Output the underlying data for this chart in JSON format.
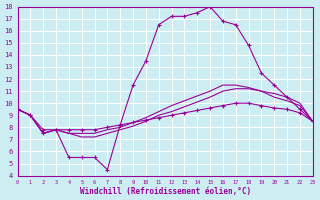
{
  "xlabel": "Windchill (Refroidissement éolien,°C)",
  "background_color": "#cceef2",
  "grid_color": "#ffffff",
  "line_color": "#990099",
  "xlim": [
    0,
    23
  ],
  "ylim": [
    4,
    18
  ],
  "xticks": [
    0,
    1,
    2,
    3,
    4,
    5,
    6,
    7,
    8,
    9,
    10,
    11,
    12,
    13,
    14,
    15,
    16,
    17,
    18,
    19,
    20,
    21,
    22,
    23
  ],
  "yticks": [
    4,
    5,
    6,
    7,
    8,
    9,
    10,
    11,
    12,
    13,
    14,
    15,
    16,
    17,
    18
  ],
  "series": [
    {
      "x": [
        0,
        1,
        2,
        3,
        4,
        5,
        6,
        7,
        8,
        9,
        10,
        11,
        12,
        13,
        14,
        15,
        16,
        17,
        18,
        19,
        20,
        21,
        22,
        23
      ],
      "y": [
        9.5,
        9.0,
        7.5,
        7.8,
        5.5,
        5.5,
        5.5,
        4.5,
        8.2,
        11.5,
        13.5,
        16.5,
        17.2,
        17.2,
        17.5,
        18.0,
        16.8,
        16.5,
        14.8,
        12.5,
        11.5,
        10.5,
        9.5,
        8.5
      ],
      "marker": "+"
    },
    {
      "x": [
        0,
        1,
        2,
        3,
        4,
        5,
        6,
        7,
        8,
        9,
        10,
        11,
        12,
        13,
        14,
        15,
        16,
        17,
        18,
        19,
        20,
        21,
        22,
        23
      ],
      "y": [
        9.5,
        9.0,
        7.8,
        7.8,
        7.8,
        7.8,
        7.8,
        8.0,
        8.2,
        8.4,
        8.6,
        8.8,
        9.0,
        9.2,
        9.4,
        9.6,
        9.8,
        10.0,
        10.0,
        9.8,
        9.6,
        9.5,
        9.2,
        8.5
      ],
      "marker": "+"
    },
    {
      "x": [
        0,
        1,
        2,
        3,
        4,
        5,
        6,
        7,
        8,
        9,
        10,
        11,
        12,
        13,
        14,
        15,
        16,
        17,
        18,
        19,
        20,
        21,
        22,
        23
      ],
      "y": [
        9.5,
        9.0,
        7.5,
        7.8,
        7.5,
        7.5,
        7.5,
        7.8,
        8.0,
        8.4,
        8.8,
        9.3,
        9.8,
        10.2,
        10.6,
        11.0,
        11.5,
        11.5,
        11.3,
        11.0,
        10.8,
        10.5,
        10.0,
        8.5
      ],
      "marker": null
    },
    {
      "x": [
        0,
        1,
        2,
        3,
        4,
        5,
        6,
        7,
        8,
        9,
        10,
        11,
        12,
        13,
        14,
        15,
        16,
        17,
        18,
        19,
        20,
        21,
        22,
        23
      ],
      "y": [
        9.5,
        9.0,
        7.5,
        7.8,
        7.5,
        7.2,
        7.2,
        7.5,
        7.8,
        8.1,
        8.5,
        9.0,
        9.3,
        9.7,
        10.1,
        10.5,
        11.0,
        11.2,
        11.2,
        11.0,
        10.5,
        10.2,
        9.8,
        8.5
      ],
      "marker": null
    }
  ]
}
